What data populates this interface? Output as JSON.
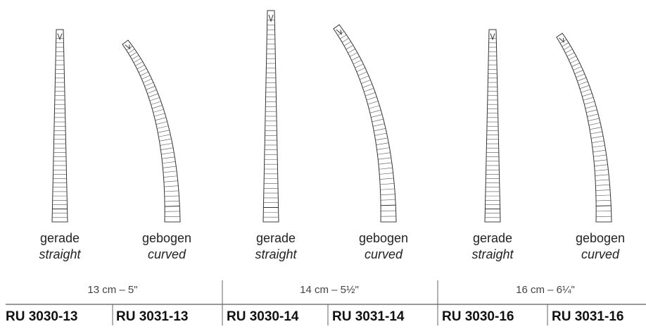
{
  "products": [
    {
      "size": "13 cm – 5\"",
      "items": [
        {
          "label_de": "gerade",
          "label_en": "straight",
          "article": "RU 3030-13"
        },
        {
          "label_de": "gebogen",
          "label_en": "curved",
          "article": "RU 3031-13"
        }
      ]
    },
    {
      "size": "14 cm – 5½\"",
      "items": [
        {
          "label_de": "gerade",
          "label_en": "straight",
          "article": "RU 3030-14"
        },
        {
          "label_de": "gebogen",
          "label_en": "curved",
          "article": "RU 3031-14"
        }
      ]
    },
    {
      "size": "16 cm – 6¼\"",
      "items": [
        {
          "label_de": "gerade",
          "label_en": "straight",
          "article": "RU 3030-16"
        },
        {
          "label_de": "gebogen",
          "label_en": "curved",
          "article": "RU 3031-16"
        }
      ]
    }
  ]
}
